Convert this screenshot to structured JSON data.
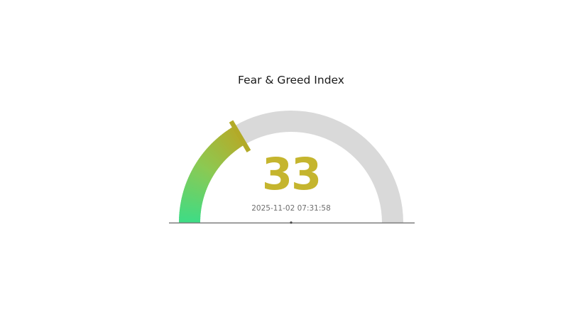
{
  "chart_data": {
    "type": "gauge",
    "title": "Fear & Greed Index",
    "value": 33,
    "min": 0,
    "max": 100,
    "timestamp": "2025-11-02 07:31:58",
    "layout_hints": {
      "shape": "semicircle",
      "fill_direction": "left-to-right",
      "filled_fraction": 0.33
    },
    "colors": {
      "background": "#ffffff",
      "track": "#d9d9d9",
      "gradient_stops": [
        "#3edc86",
        "#8cc952",
        "#b5ab29"
      ],
      "needle": "#b2aa28",
      "value_text": "#c5b52e",
      "title_text": "#1a1a1a",
      "timestamp_text": "#6e6e6e",
      "baseline": "#7a7a7a",
      "pivot_dot": "#4a4a4a"
    }
  }
}
